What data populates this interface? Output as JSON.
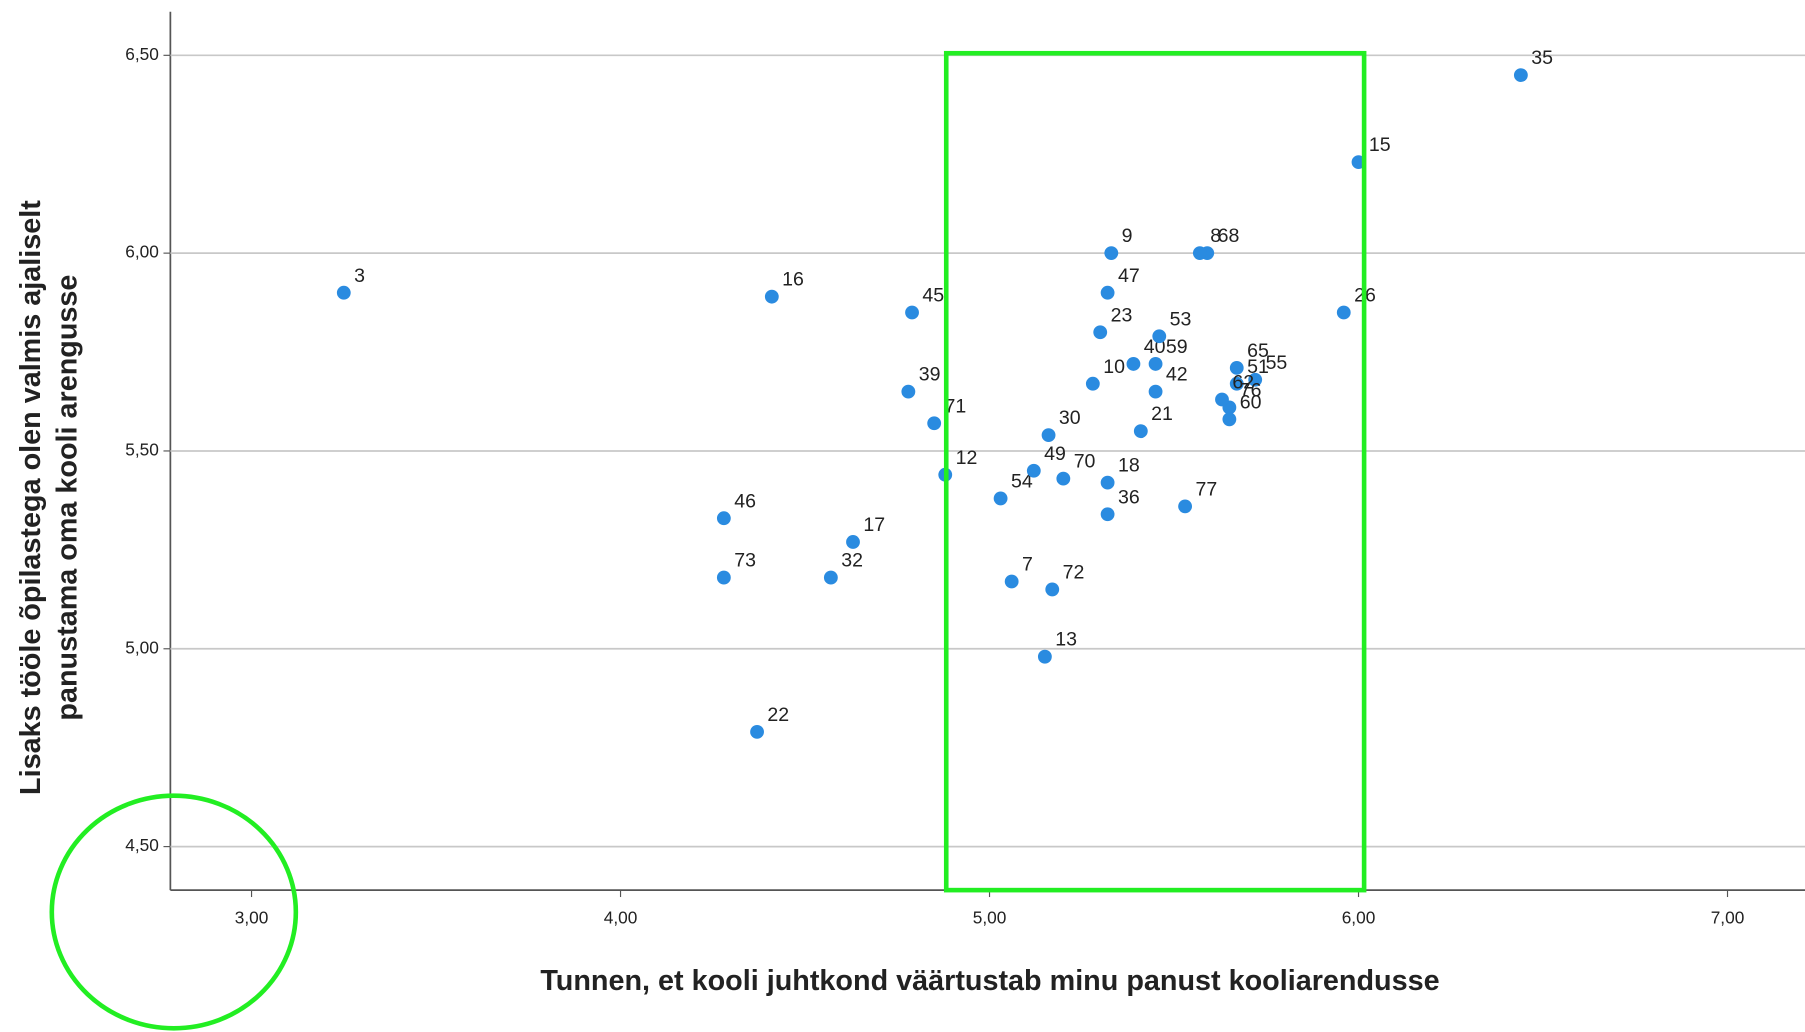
{
  "chart_data": {
    "type": "scatter",
    "xlabel": "Tunnen, et kooli juhtkond väärtustab minu panust kooliarendusse",
    "ylabel": [
      "Lisaks tööle õpilastega olen valmis ajaliselt",
      "panustama oma kooli arengusse"
    ],
    "color": "#2a8be0",
    "grid": true,
    "xlim": [
      2.78,
      7.21
    ],
    "ylim": [
      4.39,
      6.61
    ],
    "xticks": [
      {
        "value": 3,
        "label": "3,00"
      },
      {
        "value": 4,
        "label": "4,00"
      },
      {
        "value": 5,
        "label": "5,00"
      },
      {
        "value": 6,
        "label": "6,00"
      },
      {
        "value": 7,
        "label": "7,00"
      }
    ],
    "yticks": [
      {
        "value": 4.5,
        "label": "4,50"
      },
      {
        "value": 5,
        "label": "5,00"
      },
      {
        "value": 5.5,
        "label": "5,50"
      },
      {
        "value": 6,
        "label": "6,00"
      },
      {
        "value": 6.5,
        "label": "6,50"
      }
    ],
    "labels": [
      "3",
      "16",
      "45",
      "39",
      "71",
      "12",
      "46",
      "17",
      "73",
      "32",
      "22",
      "54",
      "49",
      "7",
      "72",
      "13",
      "30",
      "70",
      "18",
      "36",
      "10",
      "23",
      "47",
      "9",
      "40",
      "53",
      "42",
      "21",
      "59",
      "68",
      "8",
      "65",
      "55",
      "51",
      "76",
      "62",
      "60",
      "77",
      "26",
      "15",
      "35"
    ],
    "x": [
      3.25,
      4.41,
      4.79,
      4.78,
      4.85,
      4.88,
      4.28,
      4.63,
      4.28,
      4.57,
      4.37,
      5.03,
      5.12,
      5.06,
      5.17,
      5.15,
      5.16,
      5.2,
      5.32,
      5.32,
      5.28,
      5.3,
      5.32,
      5.33,
      5.39,
      5.46,
      5.45,
      5.41,
      5.45,
      5.59,
      5.57,
      5.67,
      5.72,
      5.67,
      5.65,
      5.63,
      5.65,
      5.53,
      5.96,
      6.0,
      6.44
    ],
    "y": [
      5.9,
      5.89,
      5.85,
      5.65,
      5.57,
      5.44,
      5.33,
      5.27,
      5.18,
      5.18,
      4.79,
      5.38,
      5.45,
      5.17,
      5.15,
      4.98,
      5.54,
      5.43,
      5.42,
      5.34,
      5.67,
      5.8,
      5.9,
      6.0,
      5.72,
      5.79,
      5.65,
      5.55,
      5.72,
      6.0,
      6.0,
      5.71,
      5.68,
      5.67,
      5.61,
      5.63,
      5.58,
      5.36,
      5.85,
      6.23,
      6.45
    ]
  }
}
